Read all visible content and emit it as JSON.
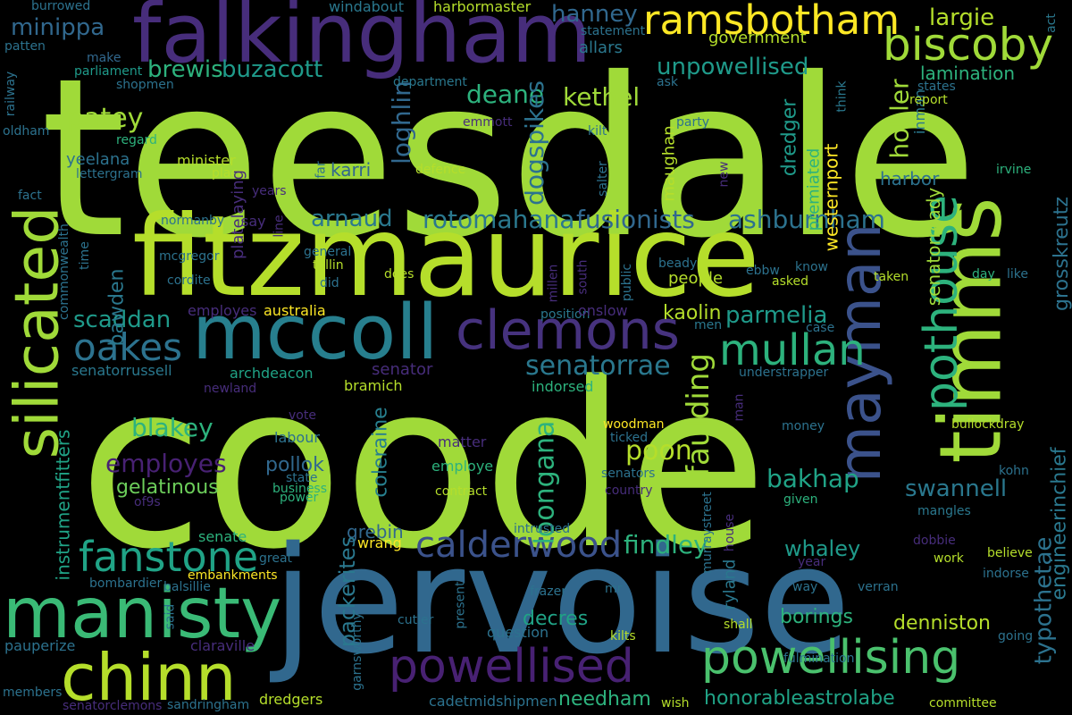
{
  "words": [
    {
      "text": "teesdale",
      "color": "#a0da39"
    },
    {
      "text": "coode",
      "color": "#a0da39"
    },
    {
      "text": "jervoise",
      "color": "#31688e"
    },
    {
      "text": "fitzmaurice",
      "color": "#b5de2b"
    },
    {
      "text": "falkingham",
      "color": "#472d7b"
    },
    {
      "text": "timms",
      "color": "#a0da39"
    },
    {
      "text": "mccoll",
      "color": "#277f8e"
    },
    {
      "text": "manisty",
      "color": "#3aba76"
    },
    {
      "text": "chinn",
      "color": "#b5de2b"
    },
    {
      "text": "silicated",
      "color": "#a0da39"
    },
    {
      "text": "mayman",
      "color": "#3b528b"
    },
    {
      "text": "clemons",
      "color": "#46327e"
    },
    {
      "text": "powellised",
      "color": "#482173"
    },
    {
      "text": "powellising",
      "color": "#4ac16d"
    },
    {
      "text": "pothouse",
      "color": "#2db27d"
    },
    {
      "text": "ramsbotham",
      "color": "#fde725"
    },
    {
      "text": "biscoby",
      "color": "#a0da39"
    },
    {
      "text": "mullan",
      "color": "#2db27d"
    },
    {
      "text": "fanstone",
      "color": "#20a386"
    },
    {
      "text": "calderwood",
      "color": "#3b528b"
    },
    {
      "text": "oakes",
      "color": "#2c728e"
    },
    {
      "text": "unpowellised",
      "color": "#1f9a8a"
    },
    {
      "text": "senatorrae",
      "color": "#2a788e"
    },
    {
      "text": "rotomahana",
      "color": "#2a788e"
    },
    {
      "text": "fusionists",
      "color": "#31688e"
    },
    {
      "text": "ashburnham",
      "color": "#2c728e"
    },
    {
      "text": "brewis",
      "color": "#2db27d"
    },
    {
      "text": "buzacott",
      "color": "#1f9a8a"
    },
    {
      "text": "deane",
      "color": "#2db27d"
    },
    {
      "text": "kethel",
      "color": "#a0da39"
    },
    {
      "text": "patey",
      "color": "#a0da39"
    },
    {
      "text": "hanney",
      "color": "#31688e"
    },
    {
      "text": "largie",
      "color": "#b5de2b"
    },
    {
      "text": "minippa",
      "color": "#31688e"
    },
    {
      "text": "arnaud",
      "color": "#2a788e"
    },
    {
      "text": "scaddan",
      "color": "#1f9a8a"
    },
    {
      "text": "parmelia",
      "color": "#1f9a8a"
    },
    {
      "text": "kaolin",
      "color": "#b5de2b"
    },
    {
      "text": "loghlin",
      "color": "#31688e"
    },
    {
      "text": "dogspikes",
      "color": "#2c728e"
    },
    {
      "text": "hobler",
      "color": "#a0da39"
    },
    {
      "text": "blakey",
      "color": "#2db27d"
    },
    {
      "text": "employes",
      "color": "#482173"
    },
    {
      "text": "gelatinous",
      "color": "#6ccd5a"
    },
    {
      "text": "pollok",
      "color": "#31688e"
    },
    {
      "text": "poon",
      "color": "#b5de2b"
    },
    {
      "text": "loongana",
      "color": "#2db27d"
    },
    {
      "text": "bakhap",
      "color": "#20a386"
    },
    {
      "text": "swannell",
      "color": "#2a788e"
    },
    {
      "text": "faulding",
      "color": "#a0da39"
    },
    {
      "text": "findley",
      "color": "#2db27d"
    },
    {
      "text": "grebin",
      "color": "#31688e"
    },
    {
      "text": "coleraine",
      "color": "#277f8e"
    },
    {
      "text": "packerites",
      "color": "#2a788e"
    },
    {
      "text": "whaley",
      "color": "#1f9a8a"
    },
    {
      "text": "borings",
      "color": "#2db27d"
    },
    {
      "text": "decres",
      "color": "#20a386"
    },
    {
      "text": "needham",
      "color": "#2db27d"
    },
    {
      "text": "honorableastrolabe",
      "color": "#20a386"
    },
    {
      "text": "denniston",
      "color": "#b5de2b"
    },
    {
      "text": "typothetae",
      "color": "#2c728e"
    },
    {
      "text": "engineerinchief",
      "color": "#2a788e"
    },
    {
      "text": "grosskreutz",
      "color": "#2c728e"
    },
    {
      "text": "instrumentfitters",
      "color": "#20a386"
    },
    {
      "text": "bawden",
      "color": "#2a788e"
    },
    {
      "text": "senatorready",
      "color": "#a0da39"
    },
    {
      "text": "westernport",
      "color": "#fde725"
    },
    {
      "text": "dredger",
      "color": "#1f9a8a"
    },
    {
      "text": "premiated",
      "color": "#2db27d"
    },
    {
      "text": "maughan",
      "color": "#b5de2b"
    },
    {
      "text": "inman",
      "color": "#2a788e"
    },
    {
      "text": "lamination",
      "color": "#2db27d"
    },
    {
      "text": "government",
      "color": "#b5de2b"
    },
    {
      "text": "allars",
      "color": "#2a788e"
    },
    {
      "text": "harbormaster",
      "color": "#b5de2b"
    },
    {
      "text": "windabout",
      "color": "#2a788e"
    },
    {
      "text": "statement",
      "color": "#2c728e"
    },
    {
      "text": "burrowed",
      "color": "#2c728e"
    },
    {
      "text": "patten",
      "color": "#2c728e"
    },
    {
      "text": "parliament",
      "color": "#1f9a8a"
    },
    {
      "text": "shopmen",
      "color": "#2c728e"
    },
    {
      "text": "make",
      "color": "#31688e"
    },
    {
      "text": "department",
      "color": "#2a788e"
    },
    {
      "text": "ask",
      "color": "#2c728e"
    },
    {
      "text": "think",
      "color": "#2a788e"
    },
    {
      "text": "states",
      "color": "#2c728e"
    },
    {
      "text": "report",
      "color": "#b5de2b"
    },
    {
      "text": "act",
      "color": "#2a788e"
    },
    {
      "text": "railway",
      "color": "#2c728e"
    },
    {
      "text": "oldham",
      "color": "#2c728e"
    },
    {
      "text": "regard",
      "color": "#2db27d"
    },
    {
      "text": "emmott",
      "color": "#472d7b"
    },
    {
      "text": "kilt",
      "color": "#2c728e"
    },
    {
      "text": "party",
      "color": "#2c728e"
    },
    {
      "text": "minister",
      "color": "#b5de2b"
    },
    {
      "text": "yeelana",
      "color": "#2c728e"
    },
    {
      "text": "lettergram",
      "color": "#2c728e"
    },
    {
      "text": "place",
      "color": "#b5de2b"
    },
    {
      "text": "platelaying",
      "color": "#472d7b"
    },
    {
      "text": "far",
      "color": "#2c728e"
    },
    {
      "text": "defence",
      "color": "#b5de2b"
    },
    {
      "text": "salter",
      "color": "#2c728e"
    },
    {
      "text": "new",
      "color": "#472d7b"
    },
    {
      "text": "irvine",
      "color": "#2db27d"
    },
    {
      "text": "fact",
      "color": "#2c728e"
    },
    {
      "text": "years",
      "color": "#472d7b"
    },
    {
      "text": "karri",
      "color": "#31688e"
    },
    {
      "text": "harbor",
      "color": "#2c728e"
    },
    {
      "text": "commonwealth",
      "color": "#2c728e"
    },
    {
      "text": "time",
      "color": "#2c728e"
    },
    {
      "text": "normanby",
      "color": "#2c728e"
    },
    {
      "text": "say",
      "color": "#472d7b"
    },
    {
      "text": "line",
      "color": "#472d7b"
    },
    {
      "text": "general",
      "color": "#2c728e"
    },
    {
      "text": "tellin",
      "color": "#b5de2b"
    },
    {
      "text": "mcgregor",
      "color": "#2c728e"
    },
    {
      "text": "cordite",
      "color": "#2c728e"
    },
    {
      "text": "did",
      "color": "#2c728e"
    },
    {
      "text": "does",
      "color": "#b5de2b"
    },
    {
      "text": "millen",
      "color": "#472d7b"
    },
    {
      "text": "south",
      "color": "#472d7b"
    },
    {
      "text": "public",
      "color": "#2c728e"
    },
    {
      "text": "beady",
      "color": "#2c728e"
    },
    {
      "text": "ebbw",
      "color": "#2c728e"
    },
    {
      "text": "asked",
      "color": "#b5de2b"
    },
    {
      "text": "know",
      "color": "#2c728e"
    },
    {
      "text": "taken",
      "color": "#b5de2b"
    },
    {
      "text": "day",
      "color": "#2db27d"
    },
    {
      "text": "like",
      "color": "#2c728e"
    },
    {
      "text": "people",
      "color": "#b5de2b"
    },
    {
      "text": "employes",
      "color": "#472d7b"
    },
    {
      "text": "australia",
      "color": "#fde725"
    },
    {
      "text": "position",
      "color": "#2a788e"
    },
    {
      "text": "onslow",
      "color": "#472d7b"
    },
    {
      "text": "men",
      "color": "#2a788e"
    },
    {
      "text": "case",
      "color": "#2c728e"
    },
    {
      "text": "senatorrussell",
      "color": "#2a788e"
    },
    {
      "text": "archdeacon",
      "color": "#20a386"
    },
    {
      "text": "senator",
      "color": "#472d7b"
    },
    {
      "text": "bramich",
      "color": "#b5de2b"
    },
    {
      "text": "indorsed",
      "color": "#2db27d"
    },
    {
      "text": "understrapper",
      "color": "#2c728e"
    },
    {
      "text": "newland",
      "color": "#472d7b"
    },
    {
      "text": "vote",
      "color": "#472d7b"
    },
    {
      "text": "labour",
      "color": "#2c728e"
    },
    {
      "text": "matter",
      "color": "#472d7b"
    },
    {
      "text": "woodman",
      "color": "#fde725"
    },
    {
      "text": "ticked",
      "color": "#2c728e"
    },
    {
      "text": "man",
      "color": "#472d7b"
    },
    {
      "text": "money",
      "color": "#2c728e"
    },
    {
      "text": "bullockdray",
      "color": "#b5de2b"
    },
    {
      "text": "employe",
      "color": "#2db27d"
    },
    {
      "text": "state",
      "color": "#2c728e"
    },
    {
      "text": "business",
      "color": "#2db27d"
    },
    {
      "text": "power",
      "color": "#2db27d"
    },
    {
      "text": "contract",
      "color": "#b5de2b"
    },
    {
      "text": "senators",
      "color": "#2c728e"
    },
    {
      "text": "country",
      "color": "#472d7b"
    },
    {
      "text": "kohn",
      "color": "#2c728e"
    },
    {
      "text": "of9s",
      "color": "#472d7b"
    },
    {
      "text": "given",
      "color": "#2db27d"
    },
    {
      "text": "murraystreet",
      "color": "#2c728e"
    },
    {
      "text": "house",
      "color": "#472d7b"
    },
    {
      "text": "mangles",
      "color": "#2a788e"
    },
    {
      "text": "intrusted",
      "color": "#2c728e"
    },
    {
      "text": "senate",
      "color": "#2db27d"
    },
    {
      "text": "great",
      "color": "#2c728e"
    },
    {
      "text": "dobbie",
      "color": "#472d7b"
    },
    {
      "text": "wrang",
      "color": "#fde725"
    },
    {
      "text": "believe",
      "color": "#b5de2b"
    },
    {
      "text": "embankments",
      "color": "#fde725"
    },
    {
      "text": "bombardier",
      "color": "#2c728e"
    },
    {
      "text": "balsillie",
      "color": "#2c728e"
    },
    {
      "text": "year",
      "color": "#472d7b"
    },
    {
      "text": "work",
      "color": "#b5de2b"
    },
    {
      "text": "indorse",
      "color": "#2c728e"
    },
    {
      "text": "said",
      "color": "#2c728e"
    },
    {
      "text": "present",
      "color": "#2c728e"
    },
    {
      "text": "frazer",
      "color": "#2c728e"
    },
    {
      "text": "mr",
      "color": "#2c728e"
    },
    {
      "text": "ryland",
      "color": "#2a788e"
    },
    {
      "text": "way",
      "color": "#2c728e"
    },
    {
      "text": "verran",
      "color": "#2c728e"
    },
    {
      "text": "pauperize",
      "color": "#2c728e"
    },
    {
      "text": "claraville",
      "color": "#472d7b"
    },
    {
      "text": "garnsworthy",
      "color": "#2c728e"
    },
    {
      "text": "cutler",
      "color": "#2c728e"
    },
    {
      "text": "question",
      "color": "#2c728e"
    },
    {
      "text": "shall",
      "color": "#b5de2b"
    },
    {
      "text": "going",
      "color": "#2c728e"
    },
    {
      "text": "kilts",
      "color": "#b5de2b"
    },
    {
      "text": "fulmination",
      "color": "#2c728e"
    },
    {
      "text": "members",
      "color": "#2c728e"
    },
    {
      "text": "dredgers",
      "color": "#b5de2b"
    },
    {
      "text": "cadetmidshipmen",
      "color": "#2c728e"
    },
    {
      "text": "sandringham",
      "color": "#2c728e"
    },
    {
      "text": "senatorclemons",
      "color": "#472d7b"
    },
    {
      "text": "wish",
      "color": "#b5de2b"
    },
    {
      "text": "committee",
      "color": "#b5de2b"
    }
  ]
}
